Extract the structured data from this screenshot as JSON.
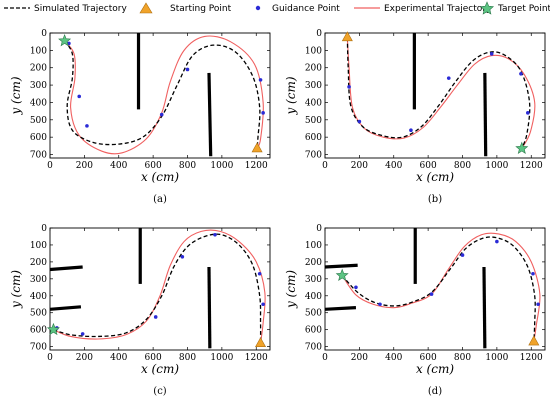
{
  "legend": {
    "items": [
      {
        "label": "Simulated Trajectory",
        "kind": "dashed",
        "color": "#000000"
      },
      {
        "label": "Starting Point",
        "kind": "triangle",
        "color": "#f0a32a"
      },
      {
        "label": "Guidance Point",
        "kind": "dot",
        "color": "#2b2bd6"
      },
      {
        "label": "Experimental Trajectory",
        "kind": "line",
        "color": "#f06060"
      },
      {
        "label": "Target Point",
        "kind": "star",
        "color": "#5cc483"
      }
    ]
  },
  "chart_data": [
    {
      "type": "line",
      "panel_label": "(a)",
      "xlabel": "x (cm)",
      "ylabel": "y (cm)",
      "xlim": [
        0,
        1280
      ],
      "ylim": [
        0,
        720
      ],
      "y_inverted": true,
      "xticks": [
        0,
        200,
        400,
        600,
        800,
        1000,
        1200
      ],
      "yticks": [
        0,
        100,
        200,
        300,
        400,
        500,
        600,
        700
      ],
      "obstacles": [
        {
          "x1": 515,
          "y1": 0,
          "x2": 515,
          "y2": 440
        },
        {
          "x1": 925,
          "y1": 230,
          "x2": 935,
          "y2": 710
        }
      ],
      "start_point": [
        1205,
        665
      ],
      "target_point": [
        85,
        45
      ],
      "guidance_points": [
        [
          110,
          60
        ],
        [
          170,
          365
        ],
        [
          215,
          535
        ],
        [
          650,
          470
        ],
        [
          800,
          210
        ],
        [
          1225,
          270
        ],
        [
          1240,
          460
        ]
      ],
      "series": [
        {
          "name": "Simulated Trajectory",
          "x": [
            85,
            130,
            130,
            100,
            130,
            250,
            400,
            540,
            650,
            740,
            830,
            950,
            1080,
            1180,
            1220,
            1210,
            1205
          ],
          "y": [
            45,
            120,
            260,
            420,
            560,
            630,
            640,
            600,
            480,
            300,
            130,
            70,
            110,
            250,
            430,
            600,
            665
          ]
        },
        {
          "name": "Experimental Trajectory",
          "x": [
            85,
            140,
            145,
            120,
            170,
            300,
            420,
            560,
            650,
            700,
            780,
            900,
            1050,
            1190,
            1240,
            1225,
            1205
          ],
          "y": [
            45,
            120,
            260,
            430,
            590,
            680,
            690,
            610,
            460,
            280,
            100,
            20,
            50,
            180,
            400,
            610,
            665
          ]
        }
      ]
    },
    {
      "type": "line",
      "panel_label": "(b)",
      "xlabel": "x (cm)",
      "ylabel": "y (cm)",
      "xlim": [
        0,
        1280
      ],
      "ylim": [
        0,
        720
      ],
      "y_inverted": true,
      "xticks": [
        0,
        200,
        400,
        600,
        800,
        1000,
        1200
      ],
      "yticks": [
        0,
        100,
        200,
        300,
        400,
        500,
        600,
        700
      ],
      "obstacles": [
        {
          "x1": 520,
          "y1": 0,
          "x2": 520,
          "y2": 440
        },
        {
          "x1": 930,
          "y1": 230,
          "x2": 935,
          "y2": 710
        }
      ],
      "start_point": [
        130,
        25
      ],
      "target_point": [
        1145,
        665
      ],
      "guidance_points": [
        [
          140,
          310
        ],
        [
          200,
          510
        ],
        [
          500,
          560
        ],
        [
          720,
          260
        ],
        [
          970,
          120
        ],
        [
          1140,
          235
        ],
        [
          1180,
          460
        ]
      ],
      "series": [
        {
          "name": "Simulated Trajectory",
          "x": [
            130,
            135,
            150,
            220,
            330,
            450,
            560,
            660,
            760,
            860,
            960,
            1050,
            1140,
            1190,
            1175,
            1145
          ],
          "y": [
            25,
            200,
            420,
            540,
            590,
            600,
            540,
            420,
            280,
            160,
            110,
            130,
            220,
            400,
            580,
            665
          ]
        },
        {
          "name": "Experimental Trajectory",
          "x": [
            130,
            140,
            160,
            230,
            340,
            460,
            570,
            670,
            770,
            870,
            970,
            1070,
            1160,
            1220,
            1195,
            1145
          ],
          "y": [
            25,
            200,
            430,
            550,
            600,
            605,
            545,
            430,
            300,
            180,
            130,
            150,
            240,
            400,
            570,
            665
          ]
        }
      ]
    },
    {
      "type": "line",
      "panel_label": "(c)",
      "xlabel": "x (cm)",
      "ylabel": "y (cm)",
      "xlim": [
        0,
        1280
      ],
      "ylim": [
        0,
        720
      ],
      "y_inverted": true,
      "xticks": [
        0,
        200,
        400,
        600,
        800,
        1000,
        1200
      ],
      "yticks": [
        0,
        100,
        200,
        300,
        400,
        500,
        600,
        700
      ],
      "obstacles": [
        {
          "x1": 0,
          "y1": 245,
          "x2": 190,
          "y2": 230
        },
        {
          "x1": 0,
          "y1": 480,
          "x2": 180,
          "y2": 465
        },
        {
          "x1": 525,
          "y1": 0,
          "x2": 525,
          "y2": 330
        },
        {
          "x1": 925,
          "y1": 230,
          "x2": 930,
          "y2": 710
        }
      ],
      "start_point": [
        1225,
        680
      ],
      "target_point": [
        20,
        600
      ],
      "guidance_points": [
        [
          40,
          590
        ],
        [
          190,
          625
        ],
        [
          615,
          525
        ],
        [
          770,
          170
        ],
        [
          960,
          40
        ],
        [
          1220,
          270
        ],
        [
          1240,
          450
        ]
      ],
      "series": [
        {
          "name": "Simulated Trajectory",
          "x": [
            20,
            120,
            280,
            440,
            560,
            650,
            720,
            800,
            900,
            1000,
            1100,
            1180,
            1220,
            1225,
            1225
          ],
          "y": [
            600,
            630,
            640,
            620,
            540,
            400,
            230,
            110,
            50,
            40,
            100,
            220,
            400,
            560,
            680
          ]
        },
        {
          "name": "Experimental Trajectory",
          "x": [
            20,
            120,
            280,
            440,
            560,
            640,
            700,
            780,
            880,
            990,
            1100,
            1200,
            1250,
            1240,
            1225
          ],
          "y": [
            600,
            640,
            655,
            630,
            550,
            400,
            220,
            80,
            20,
            20,
            80,
            200,
            380,
            560,
            680
          ]
        }
      ]
    },
    {
      "type": "line",
      "panel_label": "(d)",
      "xlabel": "x (cm)",
      "ylabel": "y (cm)",
      "xlim": [
        0,
        1280
      ],
      "ylim": [
        0,
        720
      ],
      "y_inverted": true,
      "xticks": [
        0,
        200,
        400,
        600,
        800,
        1000,
        1200
      ],
      "yticks": [
        0,
        100,
        200,
        300,
        400,
        500,
        600,
        700
      ],
      "obstacles": [
        {
          "x1": 0,
          "y1": 230,
          "x2": 190,
          "y2": 220
        },
        {
          "x1": 0,
          "y1": 480,
          "x2": 180,
          "y2": 470
        },
        {
          "x1": 525,
          "y1": 0,
          "x2": 525,
          "y2": 330
        },
        {
          "x1": 925,
          "y1": 230,
          "x2": 930,
          "y2": 710
        }
      ],
      "start_point": [
        1215,
        670
      ],
      "target_point": [
        100,
        280
      ],
      "guidance_points": [
        [
          180,
          350
        ],
        [
          320,
          450
        ],
        [
          620,
          390
        ],
        [
          800,
          160
        ],
        [
          1000,
          80
        ],
        [
          1210,
          270
        ],
        [
          1240,
          450
        ]
      ],
      "series": [
        {
          "name": "Simulated Trajectory",
          "x": [
            100,
            190,
            290,
            400,
            500,
            620,
            730,
            820,
            920,
            1010,
            1100,
            1180,
            1220,
            1220,
            1215
          ],
          "y": [
            280,
            380,
            440,
            460,
            440,
            380,
            240,
            120,
            60,
            60,
            110,
            230,
            400,
            560,
            670
          ]
        },
        {
          "name": "Experimental Trajectory",
          "x": [
            100,
            180,
            280,
            400,
            500,
            620,
            720,
            810,
            910,
            1010,
            1110,
            1200,
            1250,
            1230,
            1215
          ],
          "y": [
            280,
            395,
            450,
            470,
            445,
            390,
            240,
            110,
            40,
            35,
            80,
            200,
            390,
            570,
            670
          ]
        }
      ]
    }
  ]
}
